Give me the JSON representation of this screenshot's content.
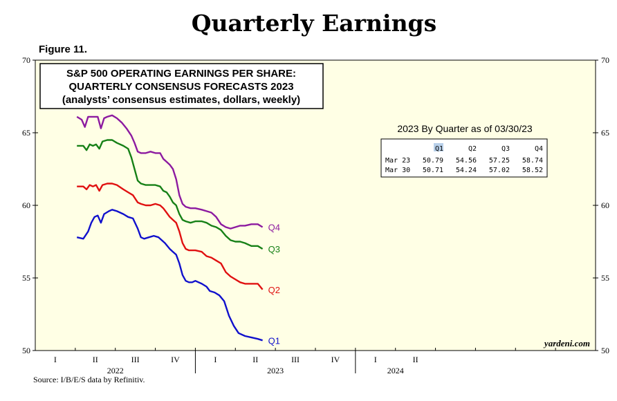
{
  "page": {
    "title": "Quarterly Earnings",
    "figure_label": "Figure 11.",
    "source": "Source: I/B/E/S data by Refinitiv.",
    "watermark": "yardeni.com"
  },
  "colors": {
    "plot_background": "#ffffe5",
    "Q1": "#1010cc",
    "Q2": "#e01010",
    "Q3": "#168016",
    "Q4": "#8c1aa0"
  },
  "chart_data": {
    "type": "line",
    "title_lines": [
      "S&P 500 OPERATING EARNINGS PER SHARE:",
      "QUARTERLY CONSENSUS FORECASTS 2023",
      "(analysts’ consensus estimates, dollars, weekly)"
    ],
    "ylim": [
      50,
      70
    ],
    "yticks": [
      50,
      55,
      60,
      65,
      70
    ],
    "xlim": [
      2021.0,
      2024.5
    ],
    "quarter_labels": [
      {
        "x": 2021.125,
        "label": "I"
      },
      {
        "x": 2021.375,
        "label": "II"
      },
      {
        "x": 2021.625,
        "label": "III"
      },
      {
        "x": 2021.875,
        "label": "IV"
      },
      {
        "x": 2022.125,
        "label": "I"
      },
      {
        "x": 2022.375,
        "label": "II"
      },
      {
        "x": 2022.625,
        "label": "III"
      },
      {
        "x": 2022.875,
        "label": "IV"
      },
      {
        "x": 2023.125,
        "label": "I"
      },
      {
        "x": 2023.375,
        "label": "II"
      }
    ],
    "year_labels": [
      {
        "x": 2021.5,
        "label": "2022"
      },
      {
        "x": 2022.5,
        "label": "2023"
      },
      {
        "x": 2023.25,
        "label": "2024"
      }
    ],
    "year_boundaries": [
      2022.0,
      2023.0
    ],
    "series": [
      {
        "name": "Q1",
        "points": [
          [
            21.26,
            57.8
          ],
          [
            21.3,
            57.7
          ],
          [
            21.33,
            58.2
          ],
          [
            21.35,
            58.8
          ],
          [
            21.37,
            59.2
          ],
          [
            21.39,
            59.3
          ],
          [
            21.41,
            58.8
          ],
          [
            21.43,
            59.4
          ],
          [
            21.46,
            59.6
          ],
          [
            21.48,
            59.7
          ],
          [
            21.51,
            59.6
          ],
          [
            21.55,
            59.4
          ],
          [
            21.58,
            59.2
          ],
          [
            21.61,
            59.1
          ],
          [
            21.64,
            58.4
          ],
          [
            21.66,
            57.8
          ],
          [
            21.68,
            57.7
          ],
          [
            21.71,
            57.8
          ],
          [
            21.74,
            57.9
          ],
          [
            21.77,
            57.8
          ],
          [
            21.79,
            57.6
          ],
          [
            21.81,
            57.4
          ],
          [
            21.84,
            57.0
          ],
          [
            21.86,
            56.8
          ],
          [
            21.88,
            56.6
          ],
          [
            21.9,
            56.0
          ],
          [
            21.92,
            55.2
          ],
          [
            21.94,
            54.8
          ],
          [
            21.96,
            54.7
          ],
          [
            21.98,
            54.7
          ],
          [
            22.0,
            54.8
          ],
          [
            22.04,
            54.6
          ],
          [
            22.07,
            54.4
          ],
          [
            22.09,
            54.1
          ],
          [
            22.12,
            54.0
          ],
          [
            22.15,
            53.8
          ],
          [
            22.18,
            53.4
          ],
          [
            22.21,
            52.4
          ],
          [
            22.24,
            51.7
          ],
          [
            22.27,
            51.2
          ],
          [
            22.31,
            51.0
          ],
          [
            22.35,
            50.9
          ],
          [
            22.39,
            50.8
          ],
          [
            22.42,
            50.7
          ]
        ]
      },
      {
        "name": "Q2",
        "points": [
          [
            21.26,
            61.3
          ],
          [
            21.3,
            61.3
          ],
          [
            21.32,
            61.1
          ],
          [
            21.34,
            61.4
          ],
          [
            21.36,
            61.3
          ],
          [
            21.38,
            61.4
          ],
          [
            21.4,
            61.0
          ],
          [
            21.42,
            61.4
          ],
          [
            21.45,
            61.5
          ],
          [
            21.48,
            61.5
          ],
          [
            21.51,
            61.4
          ],
          [
            21.55,
            61.1
          ],
          [
            21.58,
            60.9
          ],
          [
            21.61,
            60.7
          ],
          [
            21.64,
            60.2
          ],
          [
            21.66,
            60.1
          ],
          [
            21.69,
            60.0
          ],
          [
            21.72,
            60.0
          ],
          [
            21.75,
            60.1
          ],
          [
            21.78,
            60.0
          ],
          [
            21.8,
            59.8
          ],
          [
            21.82,
            59.5
          ],
          [
            21.84,
            59.2
          ],
          [
            21.86,
            59.0
          ],
          [
            21.88,
            58.8
          ],
          [
            21.9,
            58.2
          ],
          [
            21.92,
            57.4
          ],
          [
            21.94,
            57.0
          ],
          [
            21.96,
            56.9
          ],
          [
            21.98,
            56.9
          ],
          [
            22.0,
            56.9
          ],
          [
            22.04,
            56.8
          ],
          [
            22.07,
            56.5
          ],
          [
            22.1,
            56.4
          ],
          [
            22.13,
            56.2
          ],
          [
            22.16,
            56.0
          ],
          [
            22.19,
            55.4
          ],
          [
            22.22,
            55.1
          ],
          [
            22.25,
            54.9
          ],
          [
            22.28,
            54.7
          ],
          [
            22.31,
            54.6
          ],
          [
            22.35,
            54.6
          ],
          [
            22.39,
            54.6
          ],
          [
            22.42,
            54.2
          ]
        ]
      },
      {
        "name": "Q3",
        "points": [
          [
            21.26,
            64.1
          ],
          [
            21.3,
            64.1
          ],
          [
            21.32,
            63.8
          ],
          [
            21.34,
            64.2
          ],
          [
            21.36,
            64.1
          ],
          [
            21.38,
            64.2
          ],
          [
            21.4,
            63.9
          ],
          [
            21.42,
            64.4
          ],
          [
            21.45,
            64.5
          ],
          [
            21.48,
            64.5
          ],
          [
            21.51,
            64.3
          ],
          [
            21.55,
            64.1
          ],
          [
            21.58,
            63.9
          ],
          [
            21.6,
            63.3
          ],
          [
            21.62,
            62.5
          ],
          [
            21.64,
            61.7
          ],
          [
            21.66,
            61.5
          ],
          [
            21.69,
            61.4
          ],
          [
            21.72,
            61.4
          ],
          [
            21.75,
            61.4
          ],
          [
            21.78,
            61.3
          ],
          [
            21.8,
            61.0
          ],
          [
            21.82,
            60.9
          ],
          [
            21.84,
            60.6
          ],
          [
            21.86,
            60.2
          ],
          [
            21.88,
            60.0
          ],
          [
            21.9,
            59.4
          ],
          [
            21.92,
            59.0
          ],
          [
            21.94,
            58.9
          ],
          [
            21.97,
            58.8
          ],
          [
            22.0,
            58.9
          ],
          [
            22.04,
            58.9
          ],
          [
            22.07,
            58.8
          ],
          [
            22.1,
            58.6
          ],
          [
            22.13,
            58.5
          ],
          [
            22.16,
            58.3
          ],
          [
            22.19,
            57.9
          ],
          [
            22.22,
            57.6
          ],
          [
            22.25,
            57.5
          ],
          [
            22.28,
            57.5
          ],
          [
            22.31,
            57.4
          ],
          [
            22.35,
            57.2
          ],
          [
            22.39,
            57.2
          ],
          [
            22.42,
            57.0
          ]
        ]
      },
      {
        "name": "Q4",
        "points": [
          [
            21.26,
            66.1
          ],
          [
            21.29,
            65.9
          ],
          [
            21.31,
            65.4
          ],
          [
            21.33,
            66.1
          ],
          [
            21.35,
            66.1
          ],
          [
            21.37,
            66.1
          ],
          [
            21.39,
            66.1
          ],
          [
            21.41,
            65.3
          ],
          [
            21.43,
            66.0
          ],
          [
            21.45,
            66.1
          ],
          [
            21.48,
            66.2
          ],
          [
            21.51,
            66.0
          ],
          [
            21.54,
            65.7
          ],
          [
            21.57,
            65.3
          ],
          [
            21.6,
            64.8
          ],
          [
            21.62,
            64.3
          ],
          [
            21.64,
            63.7
          ],
          [
            21.66,
            63.6
          ],
          [
            21.69,
            63.6
          ],
          [
            21.72,
            63.7
          ],
          [
            21.75,
            63.6
          ],
          [
            21.78,
            63.6
          ],
          [
            21.8,
            63.2
          ],
          [
            21.82,
            63.0
          ],
          [
            21.84,
            62.8
          ],
          [
            21.86,
            62.5
          ],
          [
            21.88,
            61.8
          ],
          [
            21.9,
            60.7
          ],
          [
            21.92,
            60.1
          ],
          [
            21.94,
            59.9
          ],
          [
            21.97,
            59.8
          ],
          [
            22.0,
            59.8
          ],
          [
            22.04,
            59.7
          ],
          [
            22.07,
            59.6
          ],
          [
            22.1,
            59.5
          ],
          [
            22.13,
            59.2
          ],
          [
            22.16,
            58.7
          ],
          [
            22.19,
            58.5
          ],
          [
            22.22,
            58.4
          ],
          [
            22.25,
            58.5
          ],
          [
            22.28,
            58.6
          ],
          [
            22.31,
            58.6
          ],
          [
            22.35,
            58.7
          ],
          [
            22.39,
            58.7
          ],
          [
            22.42,
            58.5
          ]
        ]
      }
    ],
    "table": {
      "title": "2023 By Quarter as of 03/30/23",
      "headers": [
        "",
        "Q1",
        "Q2",
        "Q3",
        "Q4"
      ],
      "rows": [
        [
          "Mar 23",
          "50.79",
          "54.56",
          "57.25",
          "58.74"
        ],
        [
          "Mar 30",
          "50.71",
          "54.24",
          "57.02",
          "58.52"
        ]
      ]
    }
  }
}
